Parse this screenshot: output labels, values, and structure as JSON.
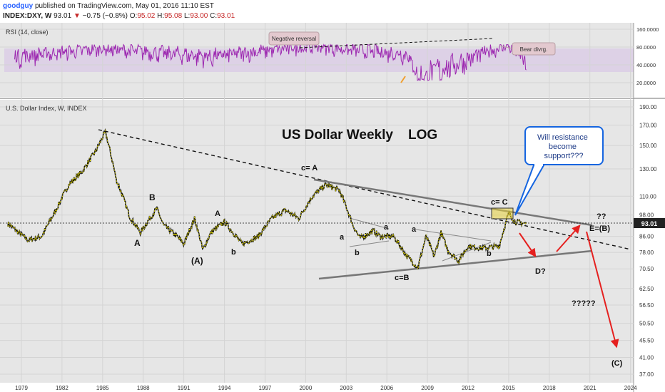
{
  "header": {
    "user": "goodguy",
    "published_text": "published on TradingView.com, May 01, 2016 11:10 EST",
    "symbol": "INDEX:DXY, W",
    "last": "93.01",
    "change_arrow": "▼",
    "change": "−0.75 (−0.8%)",
    "open_label": "O:",
    "open": "95.02",
    "high_label": "H:",
    "high": "95.08",
    "low_label": "L:",
    "low": "93.00",
    "close_label": "C:",
    "close": "93.01"
  },
  "rsi_panel": {
    "label": "RSI (14, close)",
    "axis_ticks": [
      "160.0000",
      "80.0000",
      "40.0000",
      "20.0000"
    ],
    "notes": [
      "Negative reversal",
      "Bear divrg."
    ]
  },
  "chart_data": [
    {
      "type": "line",
      "title": "RSI (14, close)",
      "scale": "log",
      "y_ticks": [
        160,
        80,
        40,
        20
      ],
      "series": [
        {
          "values_note": "oscillates mostly between 30 and 85",
          "x": [
            1978.5,
            1985,
            1993,
            2000.5,
            2007.5,
            2008.3,
            2012,
            2015,
            2016.3
          ],
          "y": [
            55,
            75,
            55,
            82,
            60,
            22,
            50,
            85,
            42
          ]
        }
      ]
    },
    {
      "type": "line",
      "title": "U.S. Dollar Index, W, INDEX",
      "scale": "log",
      "y_ticks": [
        190,
        170,
        150,
        130,
        110,
        98,
        86,
        78,
        70.5,
        62.5,
        56.5,
        50.5,
        45.5,
        41,
        37
      ],
      "x_ticks": [
        "1979",
        "1982",
        "1985",
        "1988",
        "1991",
        "1994",
        "1997",
        "2000",
        "2003",
        "2006",
        "2009",
        "2012",
        "2015",
        "2018",
        "2021",
        "2024"
      ],
      "last_price": 93.01,
      "series": [
        {
          "x": [
            1978.0,
            1978.8,
            1979.5,
            1980.5,
            1981.5,
            1982.5,
            1983.5,
            1984.5,
            1985.2,
            1986.0,
            1987.0,
            1987.8,
            1989.0,
            1989.5,
            1990.5,
            1991.0,
            1991.8,
            1992.4,
            1993.0,
            1994.0,
            1995.3,
            1996.5,
            1997.5,
            1998.5,
            1999.5,
            2000.5,
            2001.5,
            2002.5,
            2003.5,
            2004.0,
            2005.0,
            2005.5,
            2006.5,
            2007.5,
            2008.3,
            2008.9,
            2009.5,
            2010.0,
            2010.5,
            2011.3,
            2012.0,
            2013.0,
            2014.3,
            2015.0,
            2015.5,
            2016.3
          ],
          "y": [
            93,
            88,
            84,
            86,
            100,
            118,
            128,
            145,
            163,
            122,
            97,
            88,
            102,
            92,
            86,
            82,
            96,
            79,
            88,
            94,
            82,
            86,
            96,
            101,
            96,
            110,
            118,
            114,
            92,
            85,
            89,
            86,
            86,
            76,
            71,
            86,
            76,
            88,
            79,
            74,
            81,
            80,
            81,
            99,
            94,
            93.01
          ]
        }
      ],
      "annotations": {
        "title": "US Dollar Weekly    LOG",
        "callout": "Will resistance become support???",
        "wave_labels": [
          "A",
          "B",
          "A",
          "(A)",
          "a",
          "b",
          "c= A",
          "a",
          "b",
          "c=B",
          "a",
          "b",
          "c= C",
          "??",
          "E=(B)",
          "D?",
          "?????",
          "(C)"
        ]
      }
    }
  ]
}
